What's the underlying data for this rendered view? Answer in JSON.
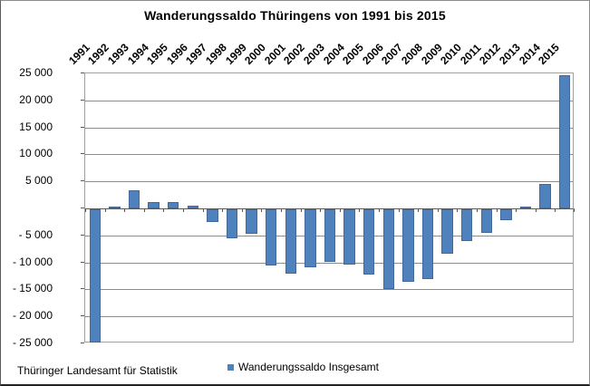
{
  "title": "Wanderungssaldo Thüringens von 1991 bis 2015",
  "source": "Thüringer Landesamt für Statistik",
  "legend": {
    "label": "Wanderungssaldo Insgesamt",
    "swatch_color": "#4F81BD"
  },
  "colors": {
    "bar_fill": "#4F81BD",
    "bar_border": "#41699E",
    "gridline": "#8C8C8C",
    "axis_line": "#595959",
    "plot_border": "#A0A0A0",
    "background": "#FFFFFF"
  },
  "chart_data": {
    "type": "bar",
    "title": "Wanderungssaldo Thüringens von 1991 bis 2015",
    "categories": [
      "1991",
      "1992",
      "1993",
      "1994",
      "1995",
      "1996",
      "1997",
      "1998",
      "1999",
      "2000",
      "2001",
      "2002",
      "2003",
      "2004",
      "2005",
      "2006",
      "2007",
      "2008",
      "2009",
      "2010",
      "2011",
      "2012",
      "2013",
      "2014",
      "2015"
    ],
    "values": [
      -24700,
      400,
      3300,
      1100,
      1200,
      500,
      -2300,
      -5300,
      -4500,
      -10400,
      -11900,
      -10700,
      -9700,
      -10300,
      -12000,
      -14700,
      -13500,
      -12900,
      -8200,
      -5800,
      -4300,
      -2000,
      300,
      4500,
      24600
    ],
    "series_name": "Wanderungssaldo Insgesamt",
    "xlabel": "",
    "ylabel": "",
    "ylim": [
      -25000,
      25000
    ],
    "ytick_step": 5000,
    "ytick_labels": [
      "25 000",
      "20 000",
      "15 000",
      "10 000",
      "5 000",
      "",
      "- 5 000",
      "- 10 000",
      "- 15 000",
      "- 20 000",
      "- 25 000"
    ],
    "grid": true,
    "legend_position": "bottom",
    "x_labels_rotation_deg": -45,
    "x_labels_position": "top"
  }
}
